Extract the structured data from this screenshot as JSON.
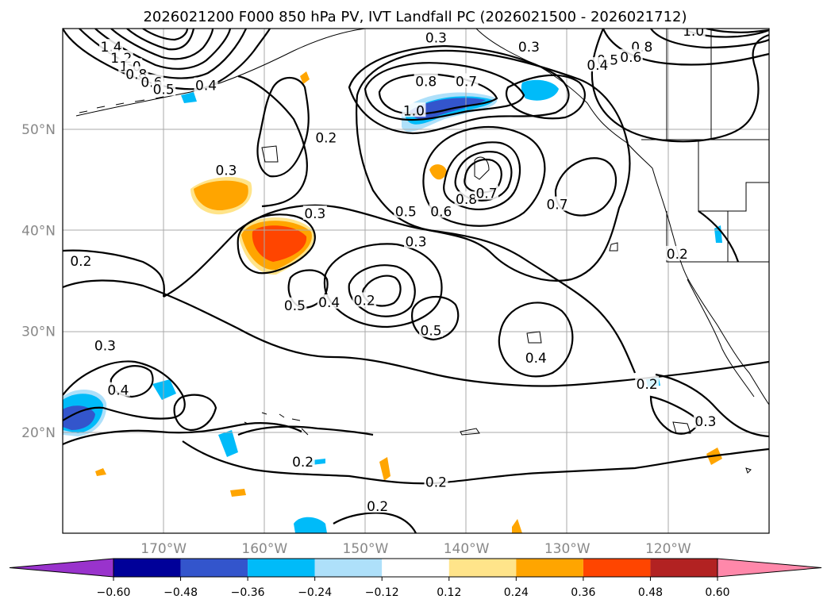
{
  "chart_data": {
    "type": "map-contour",
    "title": "2026021200 F000 850 hPa PV, IVT Landfall PC (2026021500 - 2026021712)",
    "lon_range": [
      -180,
      -110
    ],
    "lat_range": [
      10,
      60
    ],
    "lon_ticks": [
      {
        "value": -170,
        "label": "170°W"
      },
      {
        "value": -160,
        "label": "160°W"
      },
      {
        "value": -150,
        "label": "150°W"
      },
      {
        "value": -140,
        "label": "140°W"
      },
      {
        "value": -130,
        "label": "130°W"
      },
      {
        "value": -120,
        "label": "120°W"
      }
    ],
    "lat_ticks": [
      {
        "value": 20,
        "label": "20°N"
      },
      {
        "value": 30,
        "label": "30°N"
      },
      {
        "value": 40,
        "label": "40°N"
      },
      {
        "value": 50,
        "label": "50°N"
      }
    ],
    "colorbar": {
      "boundaries": [
        -0.6,
        -0.48,
        -0.36,
        -0.24,
        -0.12,
        0.12,
        0.24,
        0.36,
        0.48,
        0.6
      ],
      "tick_labels": [
        "−0.60",
        "−0.48",
        "−0.36",
        "−0.24",
        "−0.12",
        "0.12",
        "0.24",
        "0.36",
        "0.48",
        "0.60"
      ],
      "colors": [
        "#9933cc",
        "#000099",
        "#3355cc",
        "#00bbf9",
        "#aee0fa",
        "#ffffff",
        "#ffe48a",
        "#ffa500",
        "#ff4500",
        "#b22222",
        "#ff88aa"
      ],
      "extend": "both"
    },
    "contour_labels": [
      {
        "text": "0.3",
        "lon": -143.0,
        "lat": 59.0
      },
      {
        "text": "0.3",
        "lon": -133.8,
        "lat": 58.1
      },
      {
        "text": "0.8",
        "lon": -122.6,
        "lat": 58.1
      },
      {
        "text": "0.6",
        "lon": -123.7,
        "lat": 57.1
      },
      {
        "text": "0.5",
        "lon": -126.0,
        "lat": 56.8
      },
      {
        "text": "0.4",
        "lon": -127.0,
        "lat": 56.3
      },
      {
        "text": "1.0",
        "lon": -117.5,
        "lat": 59.7
      },
      {
        "text": "0.8",
        "lon": -144.0,
        "lat": 54.7
      },
      {
        "text": "0.7",
        "lon": -140.0,
        "lat": 54.7
      },
      {
        "text": "1.0",
        "lon": -145.2,
        "lat": 51.8
      },
      {
        "text": "0.4",
        "lon": -165.8,
        "lat": 54.3
      },
      {
        "text": "0.2",
        "lon": -153.9,
        "lat": 49.1
      },
      {
        "text": "0.3",
        "lon": -163.8,
        "lat": 45.9
      },
      {
        "text": "0.3",
        "lon": -155.0,
        "lat": 41.6
      },
      {
        "text": "0.5",
        "lon": -146.0,
        "lat": 41.8
      },
      {
        "text": "0.6",
        "lon": -142.5,
        "lat": 41.8
      },
      {
        "text": "0.8",
        "lon": -140.0,
        "lat": 43.0
      },
      {
        "text": "0.7",
        "lon": -138.0,
        "lat": 43.6
      },
      {
        "text": "0.7",
        "lon": -131.0,
        "lat": 42.5
      },
      {
        "text": "0.3",
        "lon": -145.0,
        "lat": 38.8
      },
      {
        "text": "0.2",
        "lon": -119.1,
        "lat": 37.6
      },
      {
        "text": "0.2",
        "lon": -178.2,
        "lat": 36.9
      },
      {
        "text": "0.5",
        "lon": -157.0,
        "lat": 32.5
      },
      {
        "text": "0.4",
        "lon": -153.6,
        "lat": 32.8
      },
      {
        "text": "0.2",
        "lon": -150.1,
        "lat": 33.0
      },
      {
        "text": "0.5",
        "lon": -143.5,
        "lat": 30.0
      },
      {
        "text": "0.3",
        "lon": -175.8,
        "lat": 28.5
      },
      {
        "text": "0.4",
        "lon": -133.1,
        "lat": 27.3
      },
      {
        "text": "0.4",
        "lon": -174.5,
        "lat": 24.1
      },
      {
        "text": "0.2",
        "lon": -122.1,
        "lat": 24.7
      },
      {
        "text": "0.3",
        "lon": -116.3,
        "lat": 21.0
      },
      {
        "text": "0.2",
        "lon": -156.2,
        "lat": 17.0
      },
      {
        "text": "0.2",
        "lon": -143.0,
        "lat": 15.0
      },
      {
        "text": "0.2",
        "lon": -148.8,
        "lat": 12.6
      },
      {
        "text": "1.4",
        "lon": -175.2,
        "lat": 58.1
      },
      {
        "text": "1.2",
        "lon": -174.2,
        "lat": 57.0
      },
      {
        "text": "1.0",
        "lon": -173.3,
        "lat": 56.2
      },
      {
        "text": "0.8",
        "lon": -172.7,
        "lat": 55.4
      },
      {
        "text": "0.6",
        "lon": -171.2,
        "lat": 54.6
      },
      {
        "text": "0.5",
        "lon": -170.0,
        "lat": 53.9
      }
    ]
  }
}
